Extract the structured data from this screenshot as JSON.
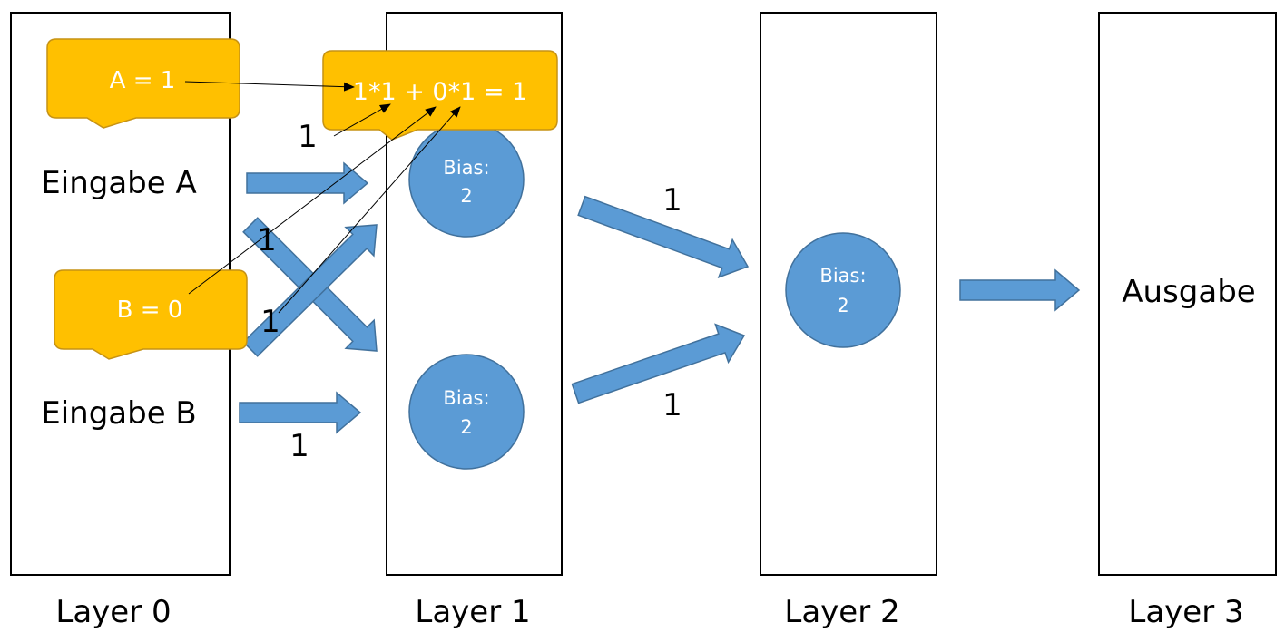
{
  "layers": [
    {
      "label": "Layer 0"
    },
    {
      "label": "Layer 1"
    },
    {
      "label": "Layer 2"
    },
    {
      "label": "Layer 3"
    }
  ],
  "inputs": {
    "a_label": "Eingabe A",
    "b_label": "Eingabe B"
  },
  "output": {
    "label": "Ausgabe"
  },
  "neurons": {
    "l1_top": {
      "bias_label": "Bias:",
      "bias_value": "2"
    },
    "l1_bottom": {
      "bias_label": "Bias:",
      "bias_value": "2"
    },
    "l2": {
      "bias_label": "Bias:",
      "bias_value": "2"
    }
  },
  "weights": {
    "a_to_l1_top": "1",
    "b_to_l1_top": "1",
    "a_to_l1_bottom": "1",
    "b_to_l1_bottom": "1",
    "l1_top_to_l2": "1",
    "l1_bottom_to_l2": "1"
  },
  "callouts": {
    "a_value": "A = 1",
    "b_value": "B = 0",
    "sum": "1*1 + 0*1 = 1"
  },
  "colors": {
    "arrow": "#5B9BD5",
    "arrow_stroke": "#41719C",
    "neuron": "#5B9BD5",
    "callout": "#FFC000",
    "callout_stroke": "#C69214",
    "text_white": "#FFFFFF",
    "text_black": "#000000"
  }
}
